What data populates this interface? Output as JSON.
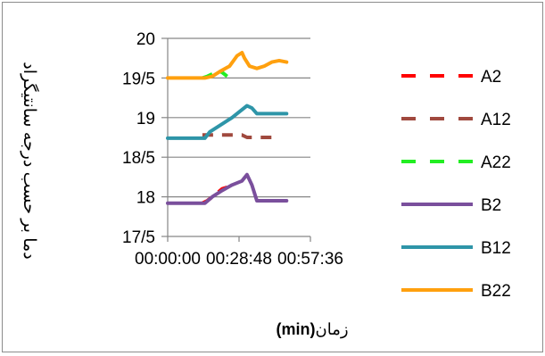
{
  "chart_data": {
    "type": "line",
    "title": "",
    "xlabel": "زمان",
    "xlabel_unit": "(min)",
    "ylabel": "دما بر حسب درجه سانتیگراد",
    "ylim": [
      17.5,
      20
    ],
    "y_ticks": [
      "20",
      "19/5",
      "19",
      "18/5",
      "18",
      "17/5"
    ],
    "x_ticks": [
      "00:00:00",
      "00:28:48",
      "00:57:36"
    ],
    "x_minutes_range": [
      0,
      57.6
    ],
    "grid": "horizontal",
    "legend_position": "right",
    "series": [
      {
        "name": "A2",
        "style": "dashed",
        "color": "#ff0000",
        "x": [
          14,
          16,
          18,
          20,
          22,
          24
        ],
        "y": [
          17.92,
          17.95,
          18.0,
          18.05,
          18.1,
          18.12
        ]
      },
      {
        "name": "A12",
        "style": "dashed",
        "color": "#a0493e",
        "x": [
          14,
          16,
          18,
          20,
          22,
          24,
          26,
          28,
          30,
          32,
          34,
          36,
          38,
          40,
          42,
          44
        ],
        "y": [
          18.78,
          18.78,
          18.78,
          18.78,
          18.78,
          18.78,
          18.78,
          18.78,
          18.78,
          18.75,
          18.75,
          18.75,
          18.75,
          18.75,
          18.75,
          18.75
        ]
      },
      {
        "name": "A22",
        "style": "dashed",
        "color": "#22ee22",
        "x": [
          14,
          16,
          18,
          20,
          22,
          24
        ],
        "y": [
          19.5,
          19.52,
          19.55,
          19.6,
          19.57,
          19.52
        ]
      },
      {
        "name": "B2",
        "style": "solid",
        "color": "#7a4f9c",
        "x": [
          0,
          5,
          10,
          15,
          18,
          22,
          26,
          30,
          32,
          34,
          36,
          40,
          45,
          48
        ],
        "y": [
          17.92,
          17.92,
          17.92,
          17.92,
          18.0,
          18.08,
          18.15,
          18.2,
          18.28,
          18.15,
          17.95,
          17.95,
          17.95,
          17.95
        ]
      },
      {
        "name": "B12",
        "style": "solid",
        "color": "#2e95a8",
        "x": [
          0,
          5,
          10,
          15,
          17,
          22,
          26,
          30,
          32,
          34,
          36,
          40,
          45,
          48
        ],
        "y": [
          18.74,
          18.74,
          18.74,
          18.74,
          18.82,
          18.92,
          19.0,
          19.1,
          19.15,
          19.12,
          19.05,
          19.05,
          19.05,
          19.05
        ]
      },
      {
        "name": "B22",
        "style": "solid",
        "color": "#ffa00e",
        "x": [
          0,
          5,
          10,
          15,
          18,
          21,
          25,
          28,
          30,
          31,
          33,
          36,
          39,
          42,
          45,
          48
        ],
        "y": [
          19.5,
          19.5,
          19.5,
          19.5,
          19.52,
          19.58,
          19.65,
          19.78,
          19.82,
          19.75,
          19.65,
          19.62,
          19.65,
          19.7,
          19.72,
          19.7
        ]
      }
    ]
  }
}
